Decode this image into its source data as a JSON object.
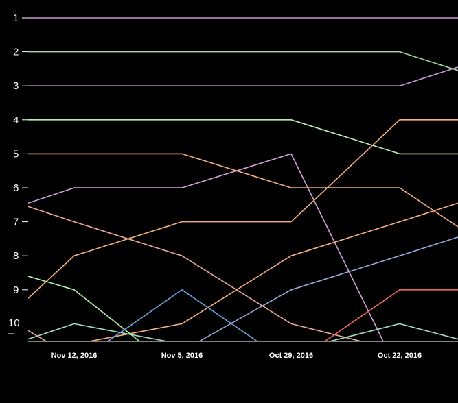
{
  "chart_data": {
    "type": "line",
    "title": "",
    "xlabel": "",
    "ylabel": "",
    "y_axis": "rank",
    "y_inverted": true,
    "ylim": [
      1,
      10.5
    ],
    "y_ticks": [
      "1",
      "2",
      "3",
      "4",
      "5",
      "6",
      "7",
      "8",
      "9",
      "10"
    ],
    "x_ticks": [
      "Nov 12, 2016",
      "Nov 5, 2016",
      "Oct 29, 2016",
      "Oct 22, 2016"
    ],
    "x_order": "reverse-chronological",
    "grid": false,
    "legend": "none",
    "background": "#000000",
    "series": [
      {
        "color": "#c99bd4",
        "values": [
          1,
          1,
          1,
          1,
          1,
          1
        ]
      },
      {
        "color": "#a6d9a2",
        "values": [
          2,
          2,
          2,
          2,
          2,
          2.55
        ]
      },
      {
        "color": "#c99bd4",
        "values": [
          3,
          3,
          3,
          3,
          3,
          2.45
        ]
      },
      {
        "color": "#b5f0b0",
        "values": [
          4,
          4,
          4,
          4,
          5,
          5
        ]
      },
      {
        "color": "#f7b07d",
        "values": [
          5,
          5,
          5,
          6,
          6,
          7.15
        ]
      },
      {
        "color": "#d4a3dc",
        "values": [
          6.45,
          6,
          6,
          5,
          11.5,
          null
        ]
      },
      {
        "color": "#f7b07d",
        "values": [
          9.25,
          8,
          7,
          7,
          4,
          4
        ]
      },
      {
        "color": "#f0a898",
        "values": [
          6.55,
          7,
          8,
          10,
          10.8,
          null
        ]
      },
      {
        "color": "#f7b07d",
        "values": [
          11.2,
          10.6,
          10,
          8,
          7,
          6.45
        ]
      },
      {
        "color": "#9aa8dc",
        "values": [
          null,
          10.8,
          10.8,
          9,
          8,
          7.45
        ]
      },
      {
        "color": "#b5f0b0",
        "values": [
          8.6,
          9,
          11.5,
          null,
          null,
          null
        ]
      },
      {
        "color": "#a0e0c8",
        "values": [
          10.45,
          10,
          10.6,
          10.8,
          10,
          10.45
        ]
      },
      {
        "color": "#f06a5c",
        "values": [
          null,
          null,
          null,
          11.2,
          9,
          9
        ]
      },
      {
        "color": "#6fa0e0",
        "values": [
          null,
          11.2,
          9,
          11.2,
          null,
          null
        ]
      },
      {
        "color": "#f0a898",
        "values": [
          10.2,
          11,
          null,
          null,
          null,
          null
        ]
      }
    ]
  }
}
